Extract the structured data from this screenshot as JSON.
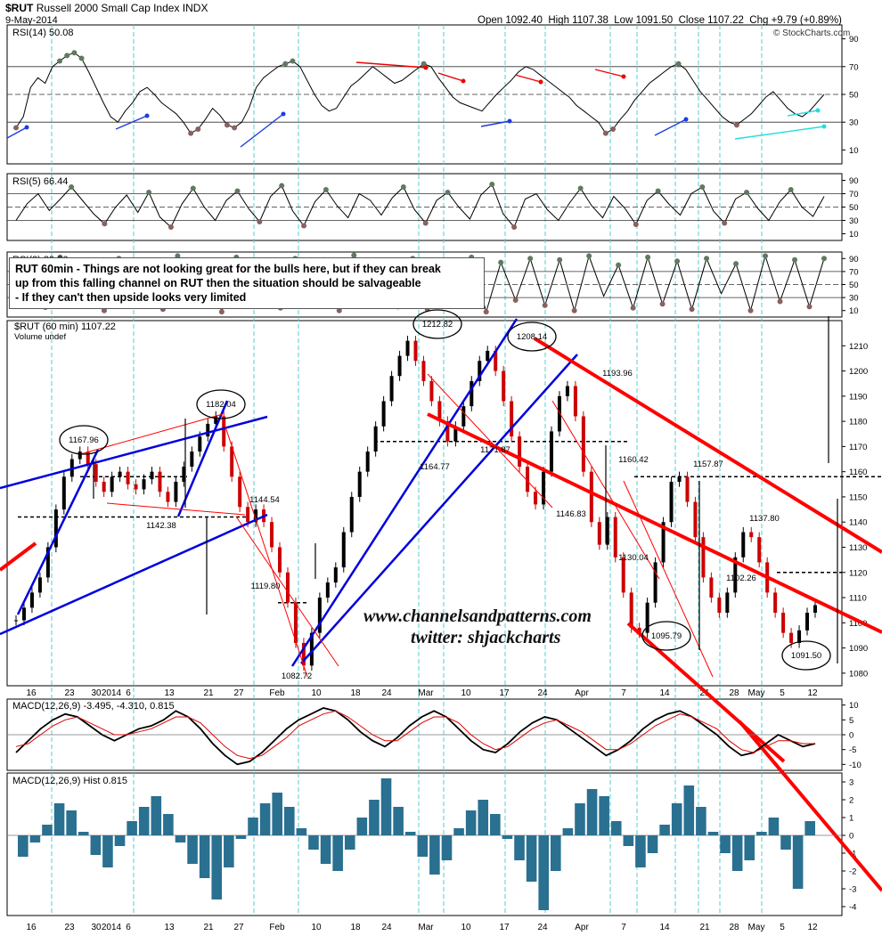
{
  "header": {
    "symbol": "$RUT",
    "name": "Russell 2000 Small Cap Index",
    "exchange": "INDX",
    "date": "9-May-2014",
    "open_label": "Open",
    "open": "1092.40",
    "high_label": "High",
    "high": "1107.38",
    "low_label": "Low",
    "low": "1091.50",
    "close_label": "Close",
    "close": "1107.22",
    "chg_label": "Chg",
    "chg": "+9.79 (+0.89%)",
    "copyright": "© StockCharts.com"
  },
  "note": {
    "line1": "RUT 60min - Things are not looking great for the bulls here, but if they can break",
    "line2": "up from this falling channel on RUT then the situation should be salvageable",
    "line3": "- If they can't then upside looks very limited"
  },
  "watermark": {
    "site": "www.channelsandpatterns.com",
    "twitter": "twitter: shjackcharts"
  },
  "colors": {
    "price": "#000000",
    "down_candle": "#cc0000",
    "channel_red": "#ff0000",
    "trend_blue": "#0000dd",
    "cyan_grid": "#55cccc",
    "rsi_up_fill": "#607a60",
    "rsi_down_fill": "#8a6060",
    "macd_hist": "#2a7090"
  },
  "chart_data": [
    {
      "type": "line",
      "panel": "rsi14",
      "title": "RSI(14) 50.08",
      "ylim": [
        0,
        100
      ],
      "y_ticks": [
        10,
        30,
        50,
        70,
        90
      ],
      "levels": [
        30,
        50,
        70
      ],
      "series": [
        {
          "name": "RSI(14)",
          "values": [
            26,
            34,
            55,
            62,
            58,
            70,
            74,
            78,
            80,
            76,
            66,
            55,
            44,
            34,
            30,
            38,
            44,
            52,
            55,
            50,
            44,
            40,
            36,
            30,
            22,
            25,
            32,
            40,
            35,
            28,
            26,
            30,
            40,
            55,
            62,
            66,
            70,
            72,
            74,
            70,
            60,
            50,
            42,
            38,
            40,
            48,
            56,
            60,
            65,
            70,
            66,
            62,
            58,
            60,
            64,
            68,
            72,
            70,
            62,
            55,
            48,
            44,
            42,
            40,
            38,
            44,
            50,
            55,
            60,
            66,
            70,
            68,
            64,
            60,
            56,
            52,
            48,
            42,
            38,
            34,
            30,
            22,
            25,
            32,
            38,
            46,
            52,
            58,
            62,
            66,
            70,
            72,
            68,
            60,
            52,
            46,
            40,
            34,
            30,
            28,
            32,
            36,
            42,
            48,
            52,
            46,
            40,
            36,
            34,
            38,
            44,
            50
          ]
        }
      ]
    },
    {
      "type": "line",
      "panel": "rsi5",
      "title": "RSI(5) 66.44",
      "ylim": [
        0,
        100
      ],
      "y_ticks": [
        10,
        30,
        50,
        70,
        90
      ],
      "levels": [
        30,
        50,
        70
      ],
      "series": [
        {
          "name": "RSI(5)",
          "values": [
            30,
            55,
            70,
            45,
            62,
            80,
            60,
            40,
            25,
            50,
            68,
            42,
            72,
            35,
            20,
            55,
            78,
            50,
            30,
            60,
            74,
            48,
            28,
            66,
            82,
            44,
            22,
            58,
            76,
            52,
            34,
            70,
            60,
            38,
            64,
            80,
            46,
            26,
            60,
            72,
            50,
            32,
            68,
            84,
            40,
            20,
            62,
            70,
            46,
            30,
            56,
            78,
            52,
            34,
            66,
            48,
            24,
            60,
            74,
            54,
            38,
            70,
            80,
            44,
            26,
            62,
            72,
            48,
            30,
            58,
            76,
            50,
            36,
            66
          ]
        }
      ]
    },
    {
      "type": "line",
      "panel": "rsi2",
      "title": "RSI(2) 89.36",
      "ylim": [
        0,
        100
      ],
      "y_ticks": [
        10,
        30,
        50,
        70,
        90
      ],
      "levels": [
        30,
        50,
        70
      ],
      "series": [
        {
          "name": "RSI(2)",
          "values": [
            20,
            88,
            15,
            92,
            30,
            85,
            10,
            90,
            40,
            80,
            12,
            94,
            25,
            86,
            8,
            92,
            35,
            78,
            14,
            90,
            22,
            88,
            10,
            95,
            30,
            82,
            16,
            90,
            12,
            86,
            40,
            92,
            8,
            84,
            26,
            90,
            18,
            88,
            10,
            94,
            32,
            80,
            14,
            92,
            20,
            86,
            12,
            90,
            36,
            82,
            10,
            94,
            24,
            88,
            16,
            90
          ]
        }
      ]
    },
    {
      "type": "candlestick",
      "panel": "price",
      "title": "$RUT (60 min) 1107.22",
      "legend": "Volume undef",
      "ylim": [
        1075,
        1220
      ],
      "y_ticks": [
        1080,
        1090,
        1100,
        1110,
        1120,
        1130,
        1140,
        1150,
        1160,
        1170,
        1180,
        1190,
        1200,
        1210
      ],
      "x_tick_labels": [
        "16",
        "23",
        "30",
        "2014",
        "6",
        "13",
        "21",
        "27",
        "Feb",
        "10",
        "18",
        "24",
        "Mar",
        "10",
        "17",
        "24",
        "Apr",
        "7",
        "14",
        "21",
        "28",
        "May",
        "5",
        "12"
      ],
      "series": [
        {
          "name": "$RUT",
          "values": [
            1101,
            1106,
            1112,
            1118,
            1130,
            1145,
            1158,
            1165,
            1168,
            1163,
            1156,
            1152,
            1158,
            1160,
            1155,
            1153,
            1157,
            1160,
            1152,
            1148,
            1156,
            1162,
            1168,
            1174,
            1179,
            1182,
            1170,
            1158,
            1146,
            1140,
            1145,
            1140,
            1130,
            1120,
            1108,
            1092,
            1083,
            1096,
            1110,
            1116,
            1122,
            1136,
            1150,
            1160,
            1168,
            1178,
            1188,
            1198,
            1206,
            1212,
            1204,
            1196,
            1188,
            1180,
            1172,
            1178,
            1186,
            1196,
            1204,
            1208,
            1200,
            1188,
            1174,
            1162,
            1152,
            1147,
            1160,
            1176,
            1190,
            1194,
            1182,
            1160,
            1140,
            1131,
            1142,
            1126,
            1112,
            1098,
            1096,
            1108,
            1124,
            1140,
            1156,
            1158,
            1148,
            1134,
            1118,
            1110,
            1104,
            1112,
            1126,
            1136,
            1134,
            1124,
            1112,
            1104,
            1096,
            1092,
            1097,
            1104,
            1107
          ]
        }
      ],
      "annotations": [
        "1167.96",
        "1182.04",
        "1144.54",
        "1142.38",
        "1119.80",
        "1082.72",
        "1212.82",
        "1208.14",
        "1164.77",
        "1171.87",
        "1193.96",
        "1160.42",
        "1146.83",
        "1157.87",
        "1137.80",
        "1130.04",
        "1095.79",
        "1102.26",
        "1091.50"
      ]
    },
    {
      "type": "line",
      "panel": "macd",
      "title": "MACD(12,26,9) -3.495, -4.310, 0.815",
      "ylim": [
        -12,
        12
      ],
      "y_ticks": [
        -10,
        -5,
        0,
        5,
        10
      ],
      "series": [
        {
          "name": "MACD",
          "values": [
            -6,
            -2,
            2,
            5,
            7,
            6,
            3,
            0,
            -2,
            0,
            2,
            3,
            5,
            8,
            6,
            2,
            -3,
            -7,
            -10,
            -9,
            -6,
            -2,
            2,
            5,
            7,
            9,
            8,
            5,
            1,
            -2,
            -4,
            -1,
            3,
            6,
            8,
            6,
            2,
            -2,
            -5,
            -6,
            -3,
            1,
            4,
            6,
            5,
            2,
            -1,
            -4,
            -7,
            -5,
            -2,
            2,
            5,
            7,
            8,
            6,
            3,
            0,
            -4,
            -7,
            -6,
            -3,
            0,
            -2,
            -4,
            -3
          ]
        },
        {
          "name": "Signal",
          "values": [
            -4,
            -3,
            0,
            3,
            5,
            6,
            4,
            2,
            0,
            0,
            1,
            2,
            4,
            6,
            6,
            4,
            0,
            -4,
            -7,
            -8,
            -7,
            -4,
            -1,
            3,
            5,
            7,
            8,
            6,
            3,
            0,
            -2,
            -2,
            1,
            4,
            6,
            6,
            4,
            0,
            -3,
            -5,
            -4,
            -1,
            2,
            4,
            5,
            3,
            1,
            -2,
            -5,
            -5,
            -3,
            0,
            3,
            5,
            7,
            6,
            4,
            2,
            -2,
            -5,
            -6,
            -4,
            -2,
            -2,
            -3,
            -3
          ]
        }
      ]
    },
    {
      "type": "bar",
      "panel": "macd_hist",
      "title": "MACD(12,26,9) Hist 0.815",
      "ylim": [
        -4.5,
        3.5
      ],
      "y_ticks": [
        -4,
        -3,
        -2,
        -1,
        0,
        1,
        2,
        3
      ],
      "series": [
        {
          "name": "Hist",
          "values": [
            -1.2,
            -0.4,
            0.6,
            1.8,
            1.4,
            0.2,
            -1.1,
            -1.8,
            -0.6,
            0.8,
            1.6,
            2.2,
            1.2,
            -0.4,
            -1.6,
            -2.4,
            -3.6,
            -1.8,
            -0.2,
            1.0,
            1.8,
            2.4,
            1.6,
            0.4,
            -0.8,
            -1.6,
            -2.0,
            -0.8,
            1.0,
            2.0,
            3.2,
            1.6,
            0.2,
            -1.2,
            -2.2,
            -1.4,
            0.4,
            1.4,
            2.0,
            1.2,
            -0.2,
            -1.4,
            -2.6,
            -4.2,
            -2.0,
            0.4,
            1.8,
            2.6,
            2.2,
            0.8,
            -0.6,
            -1.8,
            -1.0,
            0.6,
            1.8,
            2.8,
            1.6,
            0.2,
            -1.0,
            -2.0,
            -1.4,
            0.2,
            1.0,
            -0.8,
            -3.0,
            0.8
          ]
        }
      ]
    }
  ]
}
